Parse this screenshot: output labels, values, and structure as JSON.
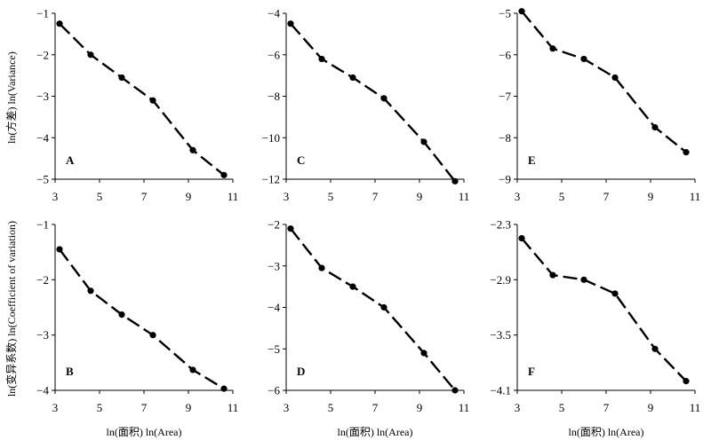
{
  "y_labels": {
    "top": "ln(方差) ln(Variance)",
    "bottom": "ln(变异系数) ln(Coefficient of variation)"
  },
  "x_label": "ln(面积) ln(Area)",
  "chart_data": [
    {
      "type": "line",
      "panel": "A",
      "x": [
        3.2,
        4.6,
        6.0,
        7.4,
        9.2,
        10.6
      ],
      "y": [
        -1.25,
        -2.0,
        -2.55,
        -3.1,
        -4.3,
        -4.9
      ],
      "xlim": [
        3,
        11
      ],
      "ylim": [
        -5,
        -1
      ],
      "xticks": [
        "3",
        "5",
        "7",
        "9",
        "11"
      ],
      "yticks": [
        "−1",
        "−2",
        "−3",
        "−4",
        "−5"
      ],
      "xlabel": "ln(面积) ln(Area)",
      "ylabel": "ln(方差) ln(Variance)",
      "grid": false,
      "line_style": "dashed"
    },
    {
      "type": "line",
      "panel": "C",
      "x": [
        3.2,
        4.6,
        6.0,
        7.4,
        9.2,
        10.6
      ],
      "y": [
        -4.5,
        -6.2,
        -7.1,
        -8.1,
        -10.2,
        -12.1
      ],
      "xlim": [
        3,
        11
      ],
      "ylim": [
        -12,
        -4
      ],
      "xticks": [
        "3",
        "5",
        "7",
        "9",
        "11"
      ],
      "yticks": [
        "−4",
        "−6",
        "−8",
        "−10",
        "−12"
      ],
      "xlabel": "ln(面积) ln(Area)",
      "ylabel": "ln(方差) ln(Variance)",
      "grid": false,
      "line_style": "dashed"
    },
    {
      "type": "line",
      "panel": "E",
      "x": [
        3.2,
        4.6,
        6.0,
        7.4,
        9.2,
        10.6
      ],
      "y": [
        -4.95,
        -5.85,
        -6.1,
        -6.55,
        -7.75,
        -8.35
      ],
      "xlim": [
        3,
        11
      ],
      "ylim": [
        -9,
        -5
      ],
      "xticks": [
        "3",
        "5",
        "7",
        "9",
        "11"
      ],
      "yticks": [
        "−5",
        "−6",
        "−7",
        "−8",
        "−9"
      ],
      "xlabel": "ln(面积) ln(Area)",
      "ylabel": "ln(方差) ln(Variance)",
      "grid": false,
      "line_style": "dashed"
    },
    {
      "type": "line",
      "panel": "B",
      "x": [
        3.2,
        4.6,
        6.0,
        7.4,
        9.2,
        10.6
      ],
      "y": [
        -1.45,
        -2.2,
        -2.63,
        -3.0,
        -3.63,
        -3.97
      ],
      "xlim": [
        3,
        11
      ],
      "ylim": [
        -4,
        -1
      ],
      "xticks": [
        "3",
        "5",
        "7",
        "9",
        "11"
      ],
      "yticks": [
        "−1",
        "−2",
        "−3",
        "−4"
      ],
      "xlabel": "ln(面积) ln(Area)",
      "ylabel": "ln(变异系数) ln(Coefficient of variation)",
      "grid": false,
      "line_style": "dashed"
    },
    {
      "type": "line",
      "panel": "D",
      "x": [
        3.2,
        4.6,
        6.0,
        7.4,
        9.2,
        10.6
      ],
      "y": [
        -2.1,
        -3.05,
        -3.5,
        -4.0,
        -5.1,
        -6.0
      ],
      "xlim": [
        3,
        11
      ],
      "ylim": [
        -6,
        -2
      ],
      "xticks": [
        "3",
        "5",
        "7",
        "9",
        "11"
      ],
      "yticks": [
        "−2",
        "−3",
        "−4",
        "−5",
        "−6"
      ],
      "xlabel": "ln(面积) ln(Area)",
      "ylabel": "ln(变异系数) ln(Coefficient of variation)",
      "grid": false,
      "line_style": "dashed"
    },
    {
      "type": "line",
      "panel": "F",
      "x": [
        3.2,
        4.6,
        6.0,
        7.4,
        9.2,
        10.6
      ],
      "y": [
        -2.45,
        -2.85,
        -2.9,
        -3.05,
        -3.65,
        -4.0
      ],
      "xlim": [
        3,
        11
      ],
      "ylim": [
        -4.1,
        -2.3
      ],
      "xticks": [
        "3",
        "5",
        "7",
        "9",
        "11"
      ],
      "yticks": [
        "−2.3",
        "−2.9",
        "−3.5",
        "−4.1"
      ],
      "xlabel": "ln(面积) ln(Area)",
      "ylabel": "ln(变异系数) ln(Coefficient of variation)",
      "grid": false,
      "line_style": "dashed"
    }
  ]
}
